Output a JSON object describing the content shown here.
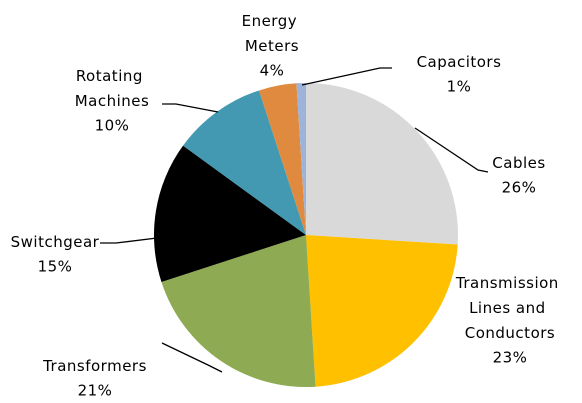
{
  "chart_data": {
    "type": "pie",
    "categories": [
      "Cables",
      "Transmission Lines and Conductors",
      "Transformers",
      "Switchgear",
      "Rotating Machines",
      "Energy Meters",
      "Capacitors"
    ],
    "values": [
      26,
      23,
      21,
      15,
      10,
      4,
      1
    ],
    "value_labels": [
      "26%",
      "23%",
      "21%",
      "15%",
      "10%",
      "4%",
      "1%"
    ],
    "colors": [
      "#d9d9d9",
      "#ffc000",
      "#8eaa52",
      "#000000",
      "#4399b1",
      "#e08a3f",
      "#9eb3da"
    ]
  }
}
